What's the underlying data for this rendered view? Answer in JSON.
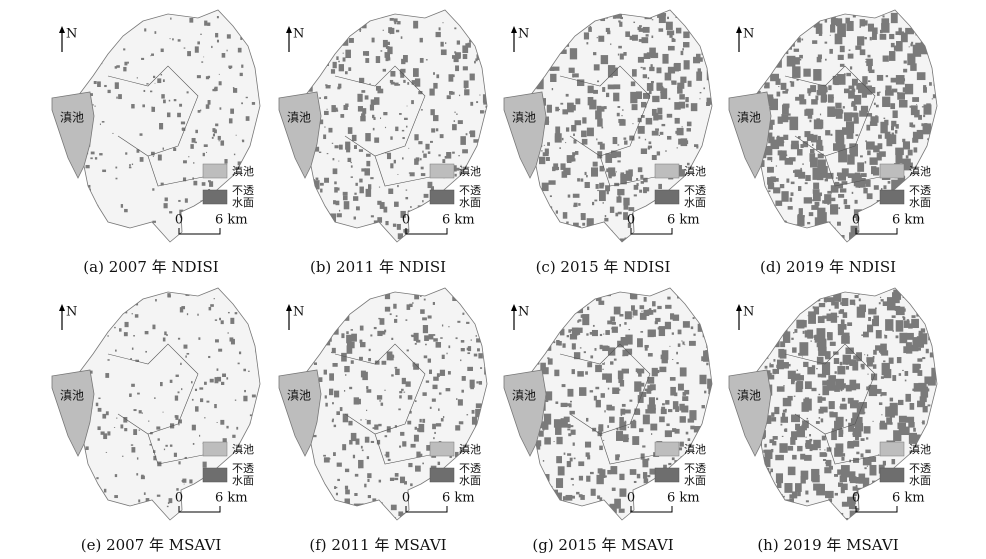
{
  "panels": [
    {
      "caption": "(a) 2007 年 NDISI",
      "north": "N",
      "lake_label": "滇池",
      "legend": {
        "lake": "滇池",
        "impervious": [
          "不透",
          "水面"
        ]
      },
      "scale": {
        "start": "0",
        "end": "6 km"
      }
    },
    {
      "caption": "(b) 2011 年 NDISI",
      "north": "N",
      "lake_label": "滇池",
      "legend": {
        "lake": "滇池",
        "impervious": [
          "不透",
          "水面"
        ]
      },
      "scale": {
        "start": "0",
        "end": "6 km"
      }
    },
    {
      "caption": "(c) 2015 年 NDISI",
      "north": "N",
      "lake_label": "滇池",
      "legend": {
        "lake": "滇池",
        "impervious": [
          "不透",
          "水面"
        ]
      },
      "scale": {
        "start": "0",
        "end": "6 km"
      }
    },
    {
      "caption": "(d) 2019 年 NDISI",
      "north": "N",
      "lake_label": "滇池",
      "legend": {
        "lake": "滇池",
        "impervious": [
          "不透",
          "水面"
        ]
      },
      "scale": {
        "start": "0",
        "end": "6 km"
      }
    },
    {
      "caption": "(e) 2007 年 MSAVI",
      "north": "N",
      "lake_label": "滇池",
      "legend": {
        "lake": "滇池",
        "impervious": [
          "不透",
          "水面"
        ]
      },
      "scale": {
        "start": "0",
        "end": "6 km"
      }
    },
    {
      "caption": "(f) 2011 年 MSAVI",
      "north": "N",
      "lake_label": "滇池",
      "legend": {
        "lake": "滇池",
        "impervious": [
          "不透",
          "水面"
        ]
      },
      "scale": {
        "start": "0",
        "end": "6 km"
      }
    },
    {
      "caption": "(g) 2015 年 MSAVI",
      "north": "N",
      "lake_label": "滇池",
      "legend": {
        "lake": "滇池",
        "impervious": [
          "不透",
          "水面"
        ]
      },
      "scale": {
        "start": "0",
        "end": "6 km"
      }
    },
    {
      "caption": "(h) 2019 年 MSAVI",
      "north": "N",
      "lake_label": "滇池",
      "legend": {
        "lake": "滇池",
        "impervious": [
          "不透",
          "水面"
        ]
      },
      "scale": {
        "start": "0",
        "end": "6 km"
      }
    }
  ]
}
